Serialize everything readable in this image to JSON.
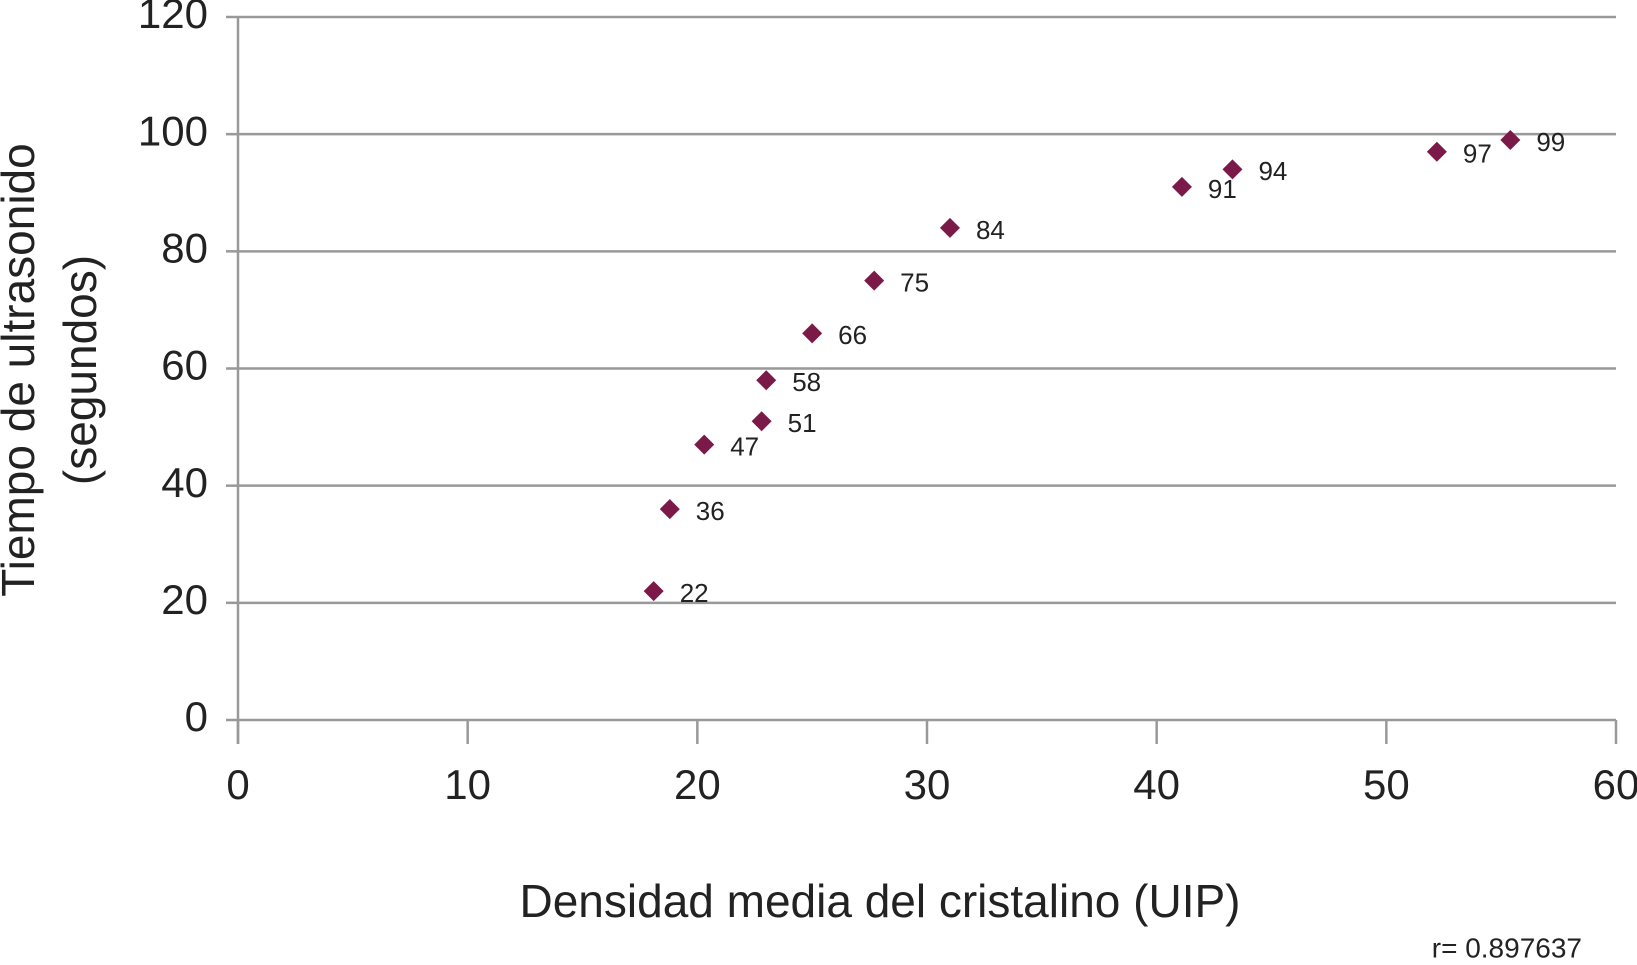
{
  "chart_data": {
    "type": "scatter",
    "xlabel": "Densidad media del cristalino (UIP)",
    "ylabel": [
      "Tiempo de ultrasonido",
      "(segundos)"
    ],
    "annotation": "r= 0.897637",
    "x": [
      18.1,
      18.8,
      20.3,
      22.8,
      23.0,
      25.0,
      27.7,
      31.0,
      41.1,
      43.3,
      52.2,
      55.4
    ],
    "values": [
      22,
      36,
      47,
      51,
      58,
      66,
      75,
      84,
      91,
      94,
      97,
      99
    ],
    "color": "#7b1a48",
    "xlim": [
      0,
      60
    ],
    "xticks": [
      0,
      10,
      20,
      30,
      40,
      50,
      60
    ],
    "ylim": [
      0,
      120
    ],
    "yticks": [
      0,
      20,
      40,
      60,
      80,
      100,
      120
    ],
    "grid": true,
    "data_labels": true
  }
}
